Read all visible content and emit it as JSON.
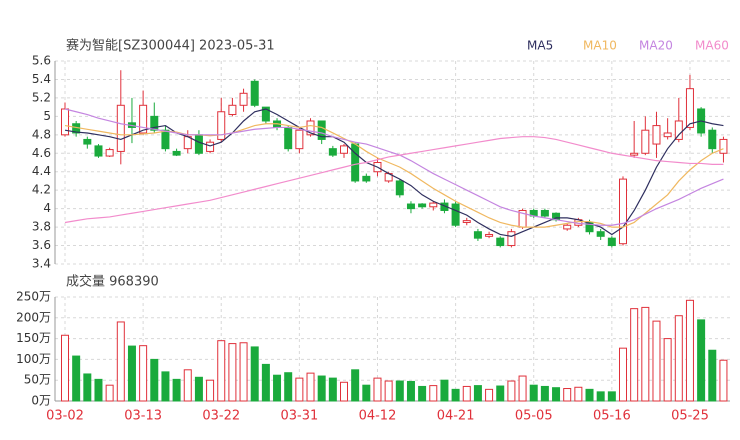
{
  "chart_data": [
    {
      "type": "candlestick",
      "title": "赛为智能[SZ300044] 2023-05-31",
      "categories": [
        "03-02",
        null,
        null,
        null,
        null,
        null,
        null,
        "03-13",
        null,
        null,
        null,
        null,
        null,
        null,
        "03-22",
        null,
        null,
        null,
        null,
        null,
        null,
        "03-31",
        null,
        null,
        null,
        null,
        null,
        null,
        "04-12",
        null,
        null,
        null,
        null,
        null,
        null,
        "04-21",
        null,
        null,
        null,
        null,
        null,
        null,
        "05-05",
        null,
        null,
        null,
        null,
        null,
        null,
        "05-16",
        null,
        null,
        null,
        null,
        null,
        null,
        "05-25",
        null,
        null,
        null
      ],
      "open": [
        4.8,
        4.92,
        4.75,
        4.68,
        4.57,
        4.62,
        4.93,
        4.82,
        5.0,
        4.85,
        4.62,
        4.65,
        4.8,
        4.62,
        4.75,
        5.02,
        5.12,
        5.38,
        5.1,
        4.95,
        4.88,
        4.65,
        4.8,
        4.95,
        4.65,
        4.6,
        4.7,
        4.35,
        4.4,
        4.3,
        4.3,
        4.05,
        4.05,
        4.02,
        4.06,
        4.05,
        3.85,
        3.75,
        3.7,
        3.68,
        3.6,
        3.8,
        3.98,
        3.98,
        3.95,
        3.78,
        3.82,
        3.85,
        3.75,
        3.68,
        3.62,
        4.58,
        4.6,
        4.7,
        4.78,
        4.75,
        4.88,
        5.08,
        4.85,
        4.6
      ],
      "high": [
        5.15,
        4.95,
        4.78,
        4.7,
        4.66,
        5.5,
        5.2,
        5.28,
        5.15,
        4.9,
        4.65,
        4.85,
        4.85,
        4.75,
        5.2,
        5.2,
        5.3,
        5.4,
        5.1,
        4.98,
        4.9,
        4.88,
        4.98,
        4.95,
        4.68,
        4.7,
        4.72,
        4.38,
        4.55,
        4.4,
        4.32,
        4.08,
        4.06,
        4.08,
        4.1,
        4.08,
        3.9,
        3.78,
        3.75,
        3.7,
        3.78,
        4.0,
        4.0,
        4.0,
        3.96,
        3.84,
        3.9,
        3.88,
        3.78,
        3.7,
        4.35,
        4.95,
        5.0,
        5.05,
        4.98,
        5.2,
        5.45,
        5.1,
        4.88,
        4.78
      ],
      "low": [
        4.78,
        4.78,
        4.65,
        4.55,
        4.56,
        4.48,
        4.71,
        4.8,
        4.82,
        4.62,
        4.57,
        4.6,
        4.58,
        4.6,
        4.72,
        5.0,
        5.05,
        5.1,
        4.92,
        4.85,
        4.62,
        4.6,
        4.78,
        4.7,
        4.56,
        4.55,
        4.28,
        4.28,
        4.35,
        4.28,
        4.12,
        3.95,
        4.0,
        3.98,
        3.95,
        3.8,
        3.82,
        3.65,
        3.68,
        3.58,
        3.58,
        3.78,
        3.9,
        3.9,
        3.86,
        3.76,
        3.8,
        3.72,
        3.66,
        3.58,
        3.6,
        4.55,
        4.58,
        4.55,
        4.75,
        4.72,
        4.85,
        4.78,
        4.6,
        4.5
      ],
      "close": [
        5.08,
        4.82,
        4.7,
        4.57,
        4.64,
        5.12,
        4.88,
        5.12,
        4.85,
        4.65,
        4.58,
        4.78,
        4.6,
        4.72,
        5.05,
        5.12,
        5.25,
        5.12,
        4.95,
        4.88,
        4.65,
        4.85,
        4.95,
        4.75,
        4.58,
        4.68,
        4.3,
        4.3,
        4.5,
        4.38,
        4.15,
        4.0,
        4.02,
        4.06,
        3.98,
        3.82,
        3.87,
        3.68,
        3.72,
        3.6,
        3.75,
        3.98,
        3.92,
        3.92,
        3.88,
        3.82,
        3.88,
        3.75,
        3.7,
        3.6,
        4.32,
        4.6,
        4.85,
        4.9,
        4.82,
        4.95,
        5.3,
        4.82,
        4.65,
        4.75
      ],
      "up_color": "#e0303a",
      "down_color": "#1aaa3c",
      "series": [
        {
          "name": "MA5",
          "color": "#2f2f5f",
          "values": [
            4.85,
            4.83,
            4.82,
            4.8,
            4.78,
            4.75,
            4.8,
            4.85,
            4.88,
            4.9,
            4.82,
            4.78,
            4.72,
            4.68,
            4.72,
            4.82,
            4.95,
            5.05,
            5.08,
            5.02,
            4.95,
            4.88,
            4.82,
            4.78,
            4.78,
            4.72,
            4.6,
            4.5,
            4.45,
            4.38,
            4.32,
            4.25,
            4.15,
            4.08,
            4.03,
            3.98,
            3.93,
            3.85,
            3.78,
            3.72,
            3.7,
            3.75,
            3.8,
            3.85,
            3.9,
            3.9,
            3.88,
            3.84,
            3.8,
            3.72,
            3.8,
            3.98,
            4.2,
            4.45,
            4.65,
            4.8,
            4.92,
            4.95,
            4.92,
            4.9
          ]
        },
        {
          "name": "MA10",
          "color": "#f0b860",
          "values": [
            4.9,
            4.88,
            4.86,
            4.84,
            4.82,
            4.8,
            4.8,
            4.81,
            4.82,
            4.84,
            4.83,
            4.8,
            4.8,
            4.79,
            4.8,
            4.82,
            4.86,
            4.9,
            4.92,
            4.92,
            4.9,
            4.88,
            4.9,
            4.88,
            4.82,
            4.76,
            4.7,
            4.62,
            4.55,
            4.5,
            4.45,
            4.38,
            4.3,
            4.22,
            4.15,
            4.08,
            4.02,
            3.96,
            3.9,
            3.85,
            3.82,
            3.8,
            3.8,
            3.8,
            3.82,
            3.84,
            3.86,
            3.86,
            3.84,
            3.8,
            3.8,
            3.85,
            3.95,
            4.05,
            4.15,
            4.3,
            4.42,
            4.52,
            4.6,
            4.65
          ]
        },
        {
          "name": "MA20",
          "color": "#c485e0",
          "values": [
            5.08,
            5.05,
            5.02,
            4.98,
            4.95,
            4.92,
            4.9,
            4.88,
            4.86,
            4.84,
            4.82,
            4.8,
            4.8,
            4.8,
            4.8,
            4.82,
            4.84,
            4.86,
            4.87,
            4.88,
            4.88,
            4.86,
            4.84,
            4.82,
            4.78,
            4.75,
            4.72,
            4.7,
            4.66,
            4.62,
            4.58,
            4.52,
            4.45,
            4.38,
            4.32,
            4.26,
            4.2,
            4.14,
            4.08,
            4.02,
            3.98,
            3.95,
            3.92,
            3.9,
            3.88,
            3.86,
            3.84,
            3.83,
            3.82,
            3.82,
            3.84,
            3.88,
            3.94,
            4.0,
            4.05,
            4.1,
            4.16,
            4.22,
            4.27,
            4.32
          ]
        },
        {
          "name": "MA60",
          "color": "#f28ccc",
          "values": [
            3.85,
            3.87,
            3.89,
            3.9,
            3.91,
            3.93,
            3.95,
            3.97,
            3.99,
            4.01,
            4.03,
            4.05,
            4.07,
            4.09,
            4.12,
            4.15,
            4.18,
            4.21,
            4.24,
            4.27,
            4.3,
            4.33,
            4.36,
            4.39,
            4.42,
            4.45,
            4.48,
            4.5,
            4.53,
            4.56,
            4.58,
            4.6,
            4.62,
            4.64,
            4.66,
            4.68,
            4.7,
            4.72,
            4.74,
            4.76,
            4.77,
            4.78,
            4.78,
            4.77,
            4.75,
            4.72,
            4.69,
            4.66,
            4.63,
            4.6,
            4.58,
            4.56,
            4.54,
            4.52,
            4.51,
            4.5,
            4.49,
            4.49,
            4.48,
            4.48
          ]
        }
      ],
      "ylim": [
        3.4,
        5.6
      ],
      "yticks": [
        5.6,
        5.4,
        5.2,
        5,
        4.8,
        4.6,
        4.4,
        4.2,
        4,
        3.8,
        3.6,
        3.4
      ],
      "grid": true
    },
    {
      "type": "bar",
      "title": "成交量 968390",
      "values": [
        158,
        108,
        65,
        52,
        38,
        190,
        132,
        133,
        100,
        70,
        52,
        75,
        57,
        50,
        145,
        138,
        140,
        130,
        88,
        62,
        68,
        55,
        67,
        60,
        55,
        45,
        75,
        38,
        55,
        48,
        48,
        47,
        35,
        37,
        50,
        28,
        35,
        37,
        28,
        36,
        48,
        60,
        38,
        35,
        32,
        30,
        33,
        28,
        22,
        22,
        127,
        222,
        225,
        192,
        150,
        205,
        242,
        195,
        122,
        98
      ],
      "ylim": [
        0,
        250
      ],
      "yticks": [
        {
          "value": 250,
          "label": "250万"
        },
        {
          "value": 200,
          "label": "200万"
        },
        {
          "value": 150,
          "label": "150万"
        },
        {
          "value": 100,
          "label": "100万"
        },
        {
          "value": 50,
          "label": "50万"
        },
        {
          "value": 0,
          "label": "0万"
        }
      ],
      "grid": true
    }
  ]
}
